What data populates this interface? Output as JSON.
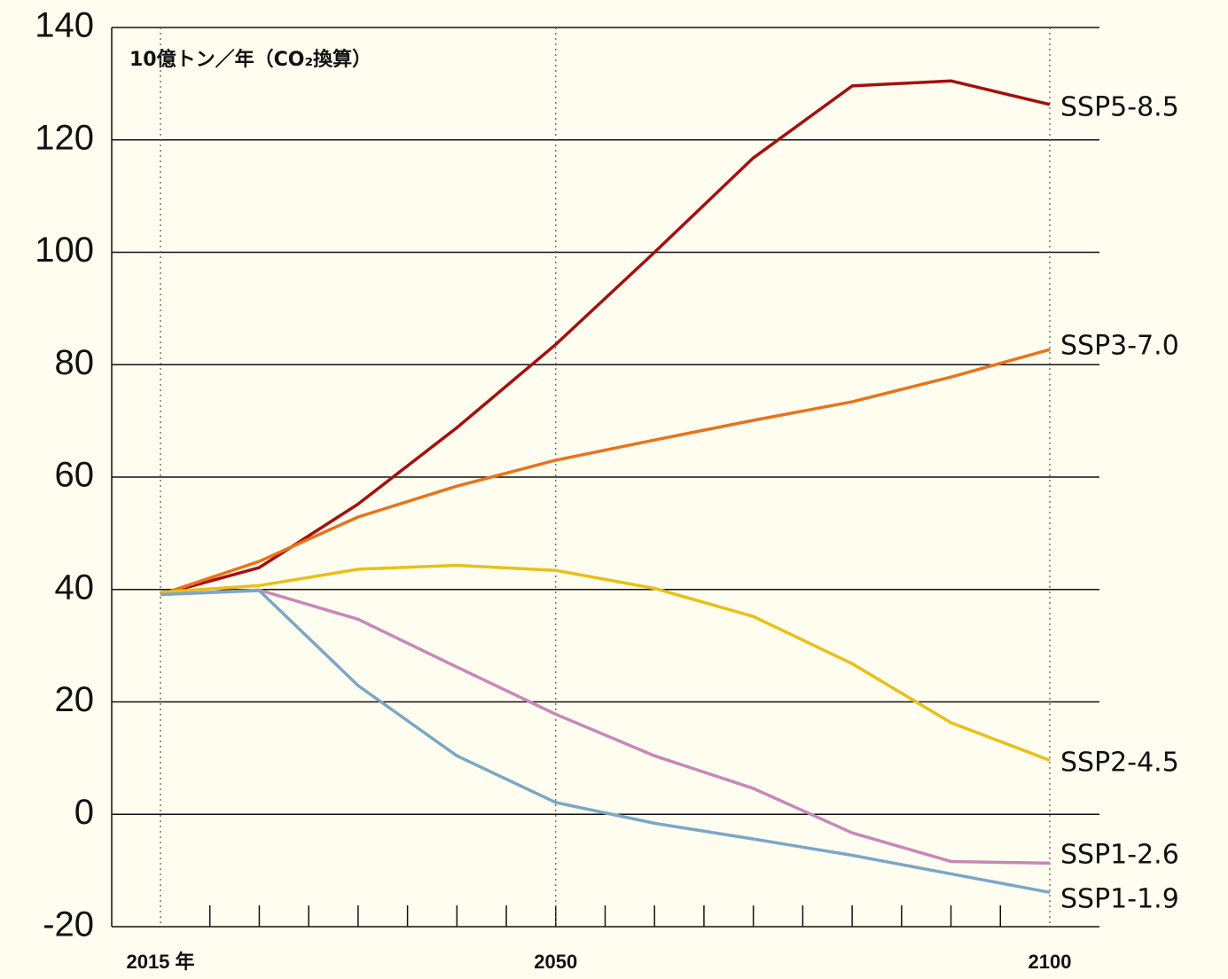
{
  "chart_data": {
    "type": "line",
    "subtitle": "10億トン／年（CO₂換算）",
    "categories": [
      "2015 年",
      null,
      null,
      null,
      "2050",
      null,
      null,
      null,
      null,
      "2100"
    ],
    "series": [
      {
        "name": "SSP5-8.5",
        "color": "#a50f0f",
        "values": [
          39.1,
          43.9,
          55.2,
          68.8,
          83.6,
          100,
          116.8,
          129.6,
          130.5,
          126.3
        ]
      },
      {
        "name": "SSP3-7.0",
        "color": "#e8731a",
        "values": [
          39.1,
          45,
          52.9,
          58.4,
          63,
          66.6,
          70.1,
          73.4,
          77.8,
          82.7
        ]
      },
      {
        "name": "SSP2-4.5",
        "color": "#e8c018",
        "values": [
          39.5,
          40.7,
          43.6,
          44.3,
          43.4,
          40.2,
          35.2,
          26.8,
          16.3,
          9.6
        ]
      },
      {
        "name": "SSP1-2.6",
        "color": "#c987b8",
        "values": [
          39.1,
          39.9,
          34.7,
          26.2,
          17.8,
          10.4,
          4.6,
          -3.3,
          -8.4,
          -8.7
        ]
      },
      {
        "name": "SSP1-1.9",
        "color": "#7ba7c4",
        "values": [
          39.1,
          39.8,
          22.9,
          10.4,
          2.1,
          -1.6,
          -4.4,
          -7.3,
          -10.6,
          -13.9
        ]
      }
    ],
    "ylim": [
      -20,
      140
    ],
    "yticks": [
      -20,
      0,
      20,
      40,
      60,
      80,
      100,
      120,
      140
    ],
    "grid": true
  }
}
